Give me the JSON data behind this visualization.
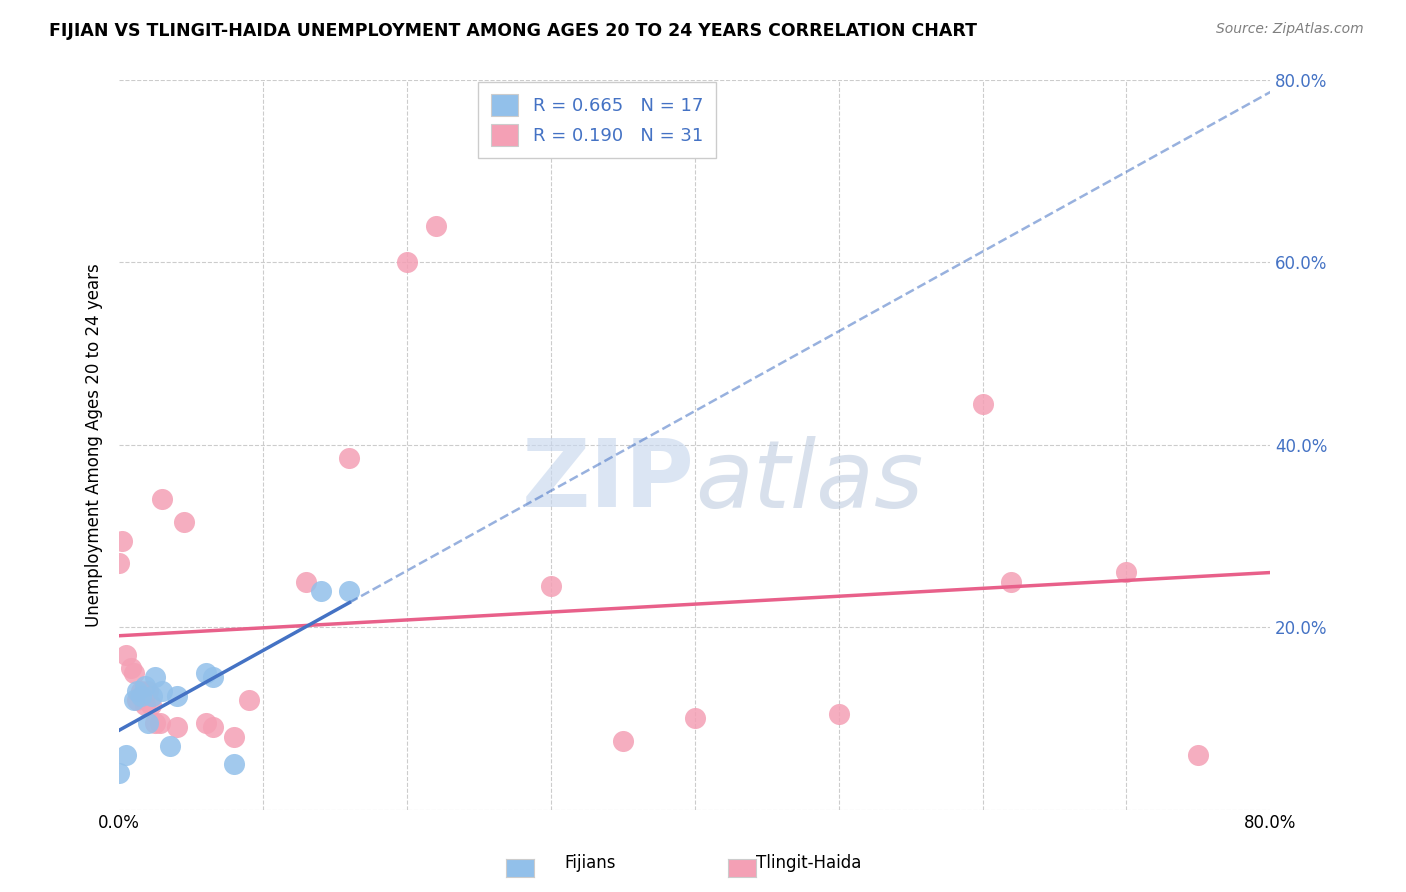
{
  "title": "FIJIAN VS TLINGIT-HAIDA UNEMPLOYMENT AMONG AGES 20 TO 24 YEARS CORRELATION CHART",
  "source": "Source: ZipAtlas.com",
  "ylabel": "Unemployment Among Ages 20 to 24 years",
  "xlim": [
    0.0,
    0.8
  ],
  "ylim": [
    0.0,
    0.8
  ],
  "fijian_color": "#92C0EA",
  "tlingit_color": "#F4A0B5",
  "fijian_R": 0.665,
  "fijian_N": 17,
  "tlingit_R": 0.19,
  "tlingit_N": 31,
  "fijian_scatter_x": [
    0.0,
    0.005,
    0.01,
    0.012,
    0.015,
    0.018,
    0.02,
    0.023,
    0.025,
    0.03,
    0.035,
    0.04,
    0.06,
    0.065,
    0.08,
    0.14,
    0.16
  ],
  "fijian_scatter_y": [
    0.04,
    0.06,
    0.12,
    0.13,
    0.125,
    0.135,
    0.095,
    0.125,
    0.145,
    0.13,
    0.07,
    0.125,
    0.15,
    0.145,
    0.05,
    0.24,
    0.24
  ],
  "tlingit_scatter_x": [
    0.0,
    0.002,
    0.005,
    0.008,
    0.01,
    0.012,
    0.015,
    0.018,
    0.02,
    0.022,
    0.025,
    0.028,
    0.03,
    0.04,
    0.045,
    0.06,
    0.065,
    0.08,
    0.09,
    0.13,
    0.16,
    0.2,
    0.22,
    0.3,
    0.35,
    0.4,
    0.5,
    0.6,
    0.62,
    0.7,
    0.75
  ],
  "tlingit_scatter_y": [
    0.27,
    0.295,
    0.17,
    0.155,
    0.15,
    0.12,
    0.13,
    0.115,
    0.13,
    0.115,
    0.095,
    0.095,
    0.34,
    0.09,
    0.315,
    0.095,
    0.09,
    0.08,
    0.12,
    0.25,
    0.385,
    0.6,
    0.64,
    0.245,
    0.075,
    0.1,
    0.105,
    0.445,
    0.25,
    0.26,
    0.06
  ],
  "fijian_line_color": "#4472C4",
  "tlingit_line_color": "#E8608A",
  "background_color": "#FFFFFF",
  "grid_color": "#CCCCCC",
  "watermark_color": "#C8D8EE",
  "accent_color": "#4472C4",
  "ytick_right_labels": [
    "",
    "20.0%",
    "40.0%",
    "60.0%",
    "80.0%"
  ],
  "xtick_labels": [
    "0.0%",
    "",
    "",
    "",
    "",
    "",
    "",
    "",
    "80.0%"
  ]
}
